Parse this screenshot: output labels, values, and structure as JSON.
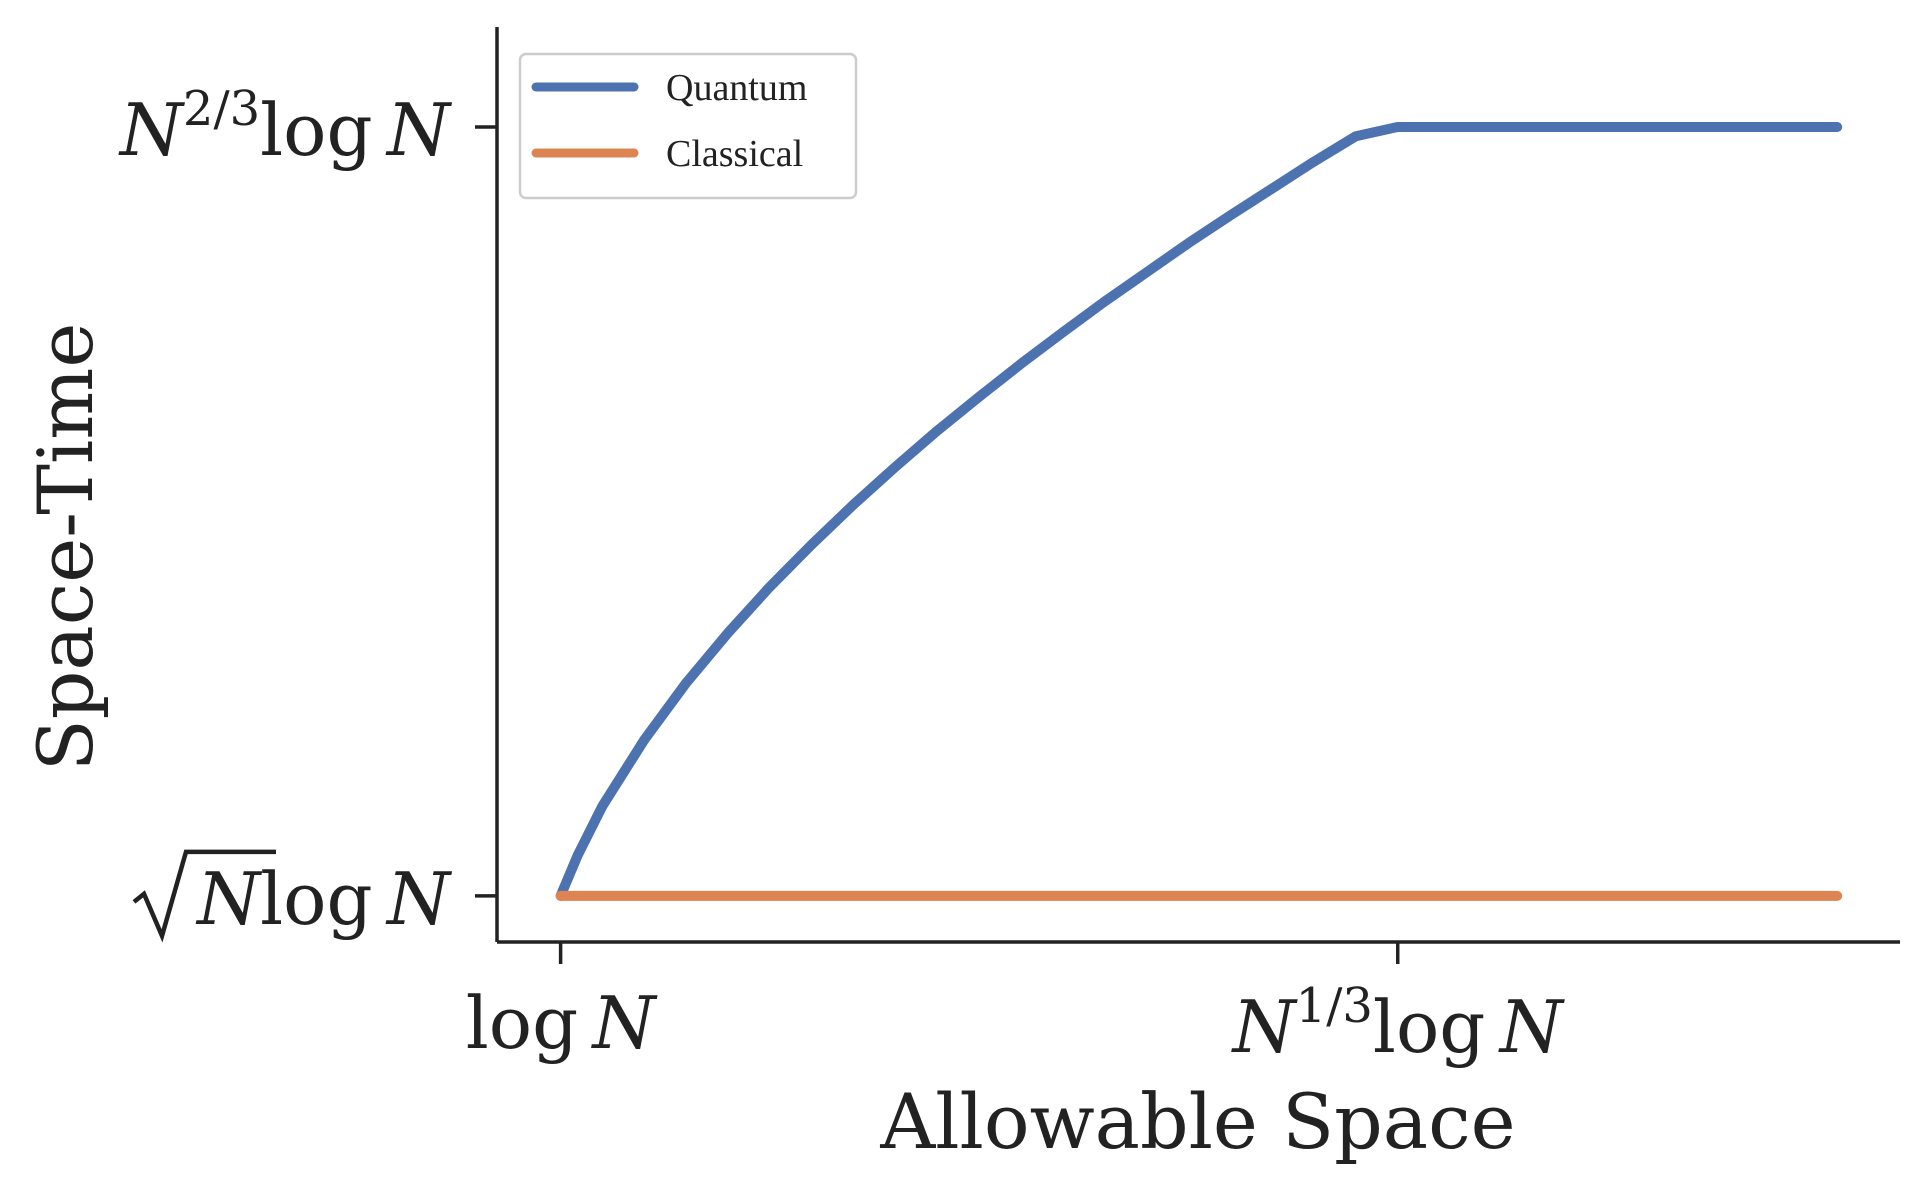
{
  "chart_data": {
    "type": "line",
    "xlabel": "Allowable Space",
    "ylabel": "Space-Time",
    "xlim": [
      -0.076,
      1.6
    ],
    "ylim": [
      -0.06,
      1.13
    ],
    "x_ticks": [
      {
        "value": 0,
        "prefix": "log ",
        "base": "N",
        "exponent": ""
      },
      {
        "value": 1,
        "prefix": "",
        "base": "N",
        "exponent": "1/3",
        "suffix": "log N"
      }
    ],
    "y_ticks": [
      {
        "value": 0,
        "sqrt": "N",
        "suffix": "log N"
      },
      {
        "value": 1,
        "base": "N",
        "exponent": "2/3",
        "suffix": "log N"
      }
    ],
    "legend": {
      "placement": "upper-left"
    },
    "series": [
      {
        "name": "Quantum",
        "color": "#4c72b0",
        "x": [
          0,
          0.02,
          0.05,
          0.1,
          0.15,
          0.2,
          0.25,
          0.3,
          0.35,
          0.4,
          0.45,
          0.5,
          0.55,
          0.6,
          0.65,
          0.7,
          0.75,
          0.8,
          0.85,
          0.9,
          0.95,
          1.0,
          1.525
        ],
        "y": [
          0,
          0.052,
          0.117,
          0.203,
          0.277,
          0.342,
          0.402,
          0.457,
          0.509,
          0.558,
          0.605,
          0.649,
          0.692,
          0.733,
          0.773,
          0.811,
          0.849,
          0.885,
          0.92,
          0.955,
          0.988,
          1.0,
          1.0
        ]
      },
      {
        "name": "Classical",
        "color": "#dd8452",
        "x": [
          0,
          1.525
        ],
        "y": [
          0,
          0
        ]
      }
    ]
  }
}
